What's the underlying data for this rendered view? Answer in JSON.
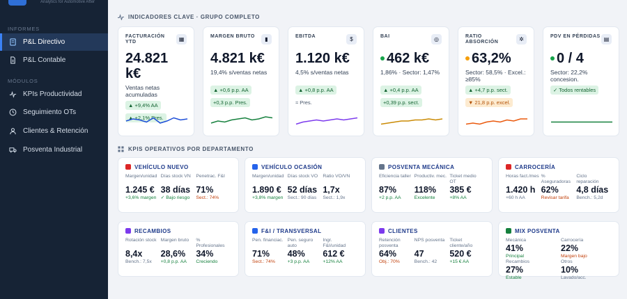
{
  "brand": {
    "tagline": "Analytics for Automotive After"
  },
  "sidebar": {
    "section_informes": "INFORMES",
    "section_modulos": "MÓDULOS",
    "informes": [
      {
        "label": "P&L Directivo",
        "icon": "document-icon"
      },
      {
        "label": "P&L Contable",
        "icon": "file-icon"
      }
    ],
    "modulos": [
      {
        "label": "KPIs Productividad",
        "icon": "activity-icon"
      },
      {
        "label": "Seguimiento OTs",
        "icon": "clock-icon"
      },
      {
        "label": "Clientes & Retención",
        "icon": "user-icon"
      },
      {
        "label": "Posventa Industrial",
        "icon": "truck-icon"
      }
    ]
  },
  "kpi_section": {
    "title": "INDICADORES CLAVE · GRUPO COMPLETO"
  },
  "kpis": [
    {
      "label": "FACTURACIÓN YTD",
      "value": "24.821 k€",
      "sub": "Ventas netas acumuladas",
      "pill1": "▲ +9,4% AA",
      "pill2": "▲ +2,1% Pres.",
      "color": "#1d4ed8",
      "trend": [
        6,
        8,
        7,
        5,
        9,
        4,
        6,
        9,
        7,
        8
      ]
    },
    {
      "label": "MARGEN BRUTO",
      "value": "4.821 k€",
      "sub": "19,4% s/ventas netas",
      "pill1": "▲ +0,6 p.p. AA",
      "pill2": "+0,3 p.p. Pres.",
      "color": "#15803d",
      "trend": [
        4,
        6,
        5,
        7,
        8,
        9,
        7,
        8,
        10,
        9
      ]
    },
    {
      "label": "EBITDA",
      "value": "1.120 k€",
      "sub": "4,5% s/ventas netas",
      "pill1": "▲ +0,8 p.p. AA",
      "pill2": "≈ Pres.",
      "color": "#7c3aed",
      "trend": [
        3,
        5,
        6,
        7,
        6,
        7,
        8,
        7,
        8,
        9
      ]
    },
    {
      "label": "BAI",
      "value": "462 k€",
      "sub": "1,86% · Sector: 1,47%",
      "pill1": "▲ +0,4 p.p. AA",
      "pill2": "+0,39 p.p. sect.",
      "color": "#ca8a04",
      "dot": "#16a34a",
      "trend": [
        3,
        4,
        5,
        6,
        6,
        7,
        7,
        8,
        7,
        8
      ]
    },
    {
      "label": "RATIO ABSORCIÓN",
      "value": "63,2%",
      "sub": "Sector: 58,5% · Excel.: ≥85%",
      "pill1": "▲ +4,7 p.p. sect.",
      "pill2": "▼ 21,8 p.p. excel.",
      "color": "#ea580c",
      "dot": "#f59e0b",
      "trend": [
        3,
        4,
        3,
        5,
        6,
        5,
        7,
        6,
        8,
        8
      ]
    },
    {
      "label": "PDV EN PÉRDIDAS",
      "value": "0 / 4",
      "sub": "Sector: 22,2% concesion.",
      "pill1": "✓ Todos rentables",
      "pill2": "",
      "color": "#15803d",
      "dot": "#16a34a",
      "trend": [
        5,
        5,
        5,
        5,
        5,
        5,
        5,
        5,
        5,
        5
      ]
    }
  ],
  "dept_section": {
    "title": "KPIS OPERATIVOS POR DEPARTAMENTO"
  },
  "departments": [
    {
      "title": "VEHÍCULO NUEVO",
      "icon": "car-icon",
      "metrics": [
        {
          "label": "Margen/unidad",
          "value": "1.245 €",
          "note": "+3,6% margen",
          "tone": "green"
        },
        {
          "label": "Días stock VN",
          "value": "38 días",
          "note": "✓ Bajo riesgo",
          "tone": "green"
        },
        {
          "label": "Penetrac. F&I",
          "value": "71%",
          "note": "Sect.: 74%",
          "tone": "orange"
        }
      ]
    },
    {
      "title": "VEHÍCULO OCASIÓN",
      "icon": "car-used-icon",
      "metrics": [
        {
          "label": "Margen/unidad",
          "value": "1.890 €",
          "note": "+3,8% margen",
          "tone": "green"
        },
        {
          "label": "Días stock VO",
          "value": "52 días",
          "note": "Sect.: 90 días",
          "tone": "grey"
        },
        {
          "label": "Ratio VO/VN",
          "value": "1,7x",
          "note": "Sect.: 1,9x",
          "tone": "grey"
        }
      ]
    },
    {
      "title": "POSVENTA MECÁNICA",
      "icon": "wrench-icon",
      "metrics": [
        {
          "label": "Eficiencia taller",
          "value": "87%",
          "note": "+2 p.p. AA",
          "tone": "green"
        },
        {
          "label": "Productiv. mec.",
          "value": "118%",
          "note": "Excelente",
          "tone": "green"
        },
        {
          "label": "Ticket medio OT",
          "value": "385 €",
          "note": "+8% AA",
          "tone": "green"
        }
      ]
    },
    {
      "title": "CARROCERÍA",
      "icon": "paint-icon",
      "metrics": [
        {
          "label": "Horas fact./mes",
          "value": "1.420 h",
          "note": "+60 h AA",
          "tone": "grey"
        },
        {
          "label": "% Aseguradoras",
          "value": "62%",
          "note": "Revisar tarifa",
          "tone": "orange"
        },
        {
          "label": "Ciclo reparación",
          "value": "4,8 días",
          "note": "Bench.: 5,2d",
          "tone": "grey"
        }
      ]
    },
    {
      "title": "RECAMBIOS",
      "icon": "gear-icon",
      "metrics": [
        {
          "label": "Rotación stock",
          "value": "8,4x",
          "note": "Bench.: 7,5x",
          "tone": "grey"
        },
        {
          "label": "Margen bruto",
          "value": "28,6%",
          "note": "+0,8 p.p. AA",
          "tone": "green"
        },
        {
          "label": "% Profesionales",
          "value": "34%",
          "note": "Creciendo",
          "tone": "green"
        }
      ]
    },
    {
      "title": "F&I / TRANSVERSAL",
      "icon": "finance-icon",
      "metrics": [
        {
          "label": "Pen. financiac.",
          "value": "71%",
          "note": "Sect.: 74%",
          "tone": "orange"
        },
        {
          "label": "Pen. seguro auto",
          "value": "48%",
          "note": "+3 p.p. AA",
          "tone": "green"
        },
        {
          "label": "Ingr. F&I/unidad",
          "value": "612 €",
          "note": "+12% AA",
          "tone": "green"
        }
      ]
    },
    {
      "title": "CLIENTES",
      "icon": "users-icon",
      "metrics": [
        {
          "label": "Retención posventa",
          "value": "64%",
          "note": "Obj.: 70%",
          "tone": "orange"
        },
        {
          "label": "NPS posventa",
          "value": "47",
          "note": "Bench.: 42",
          "tone": "grey"
        },
        {
          "label": "Ticket cliente/año",
          "value": "520 €",
          "note": "+15 € AA",
          "tone": "green"
        }
      ]
    },
    {
      "title": "MIX POSVENTA",
      "icon": "chart-icon",
      "mix": true,
      "metrics": [
        {
          "label": "Mecánica",
          "value": "41%",
          "note": "Principal",
          "tone": "green"
        },
        {
          "label": "Carrocería",
          "value": "22%",
          "note": "Margen bajo",
          "tone": "orange"
        },
        {
          "label": "Recambios",
          "value": "27%",
          "note": "Estable",
          "tone": "green"
        },
        {
          "label": "Otros",
          "value": "10%",
          "note": "Lavado/acc.",
          "tone": "grey"
        }
      ]
    }
  ]
}
